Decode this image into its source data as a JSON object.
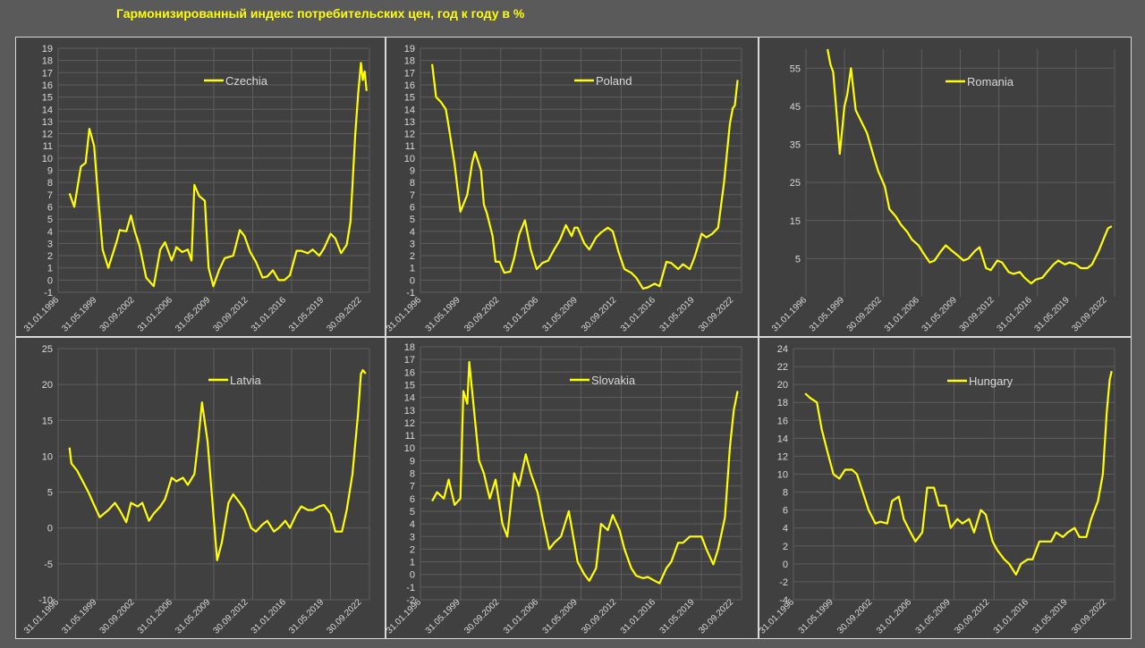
{
  "page": {
    "title": "Гармонизированный индекс потребительских цен, год к году в %"
  },
  "colors": {
    "line": "#ffff00",
    "panel_bg": "#404040",
    "page_bg": "#5a5a5a",
    "grid": "#5e5e5e",
    "text": "#d9d9d9"
  },
  "chart_data": [
    {
      "type": "line",
      "series": [
        {
          "name": "Czechia",
          "x": [
            "1997-01",
            "1997-06",
            "1998-01",
            "1998-06",
            "1998-10",
            "1999-03",
            "1999-06",
            "1999-12",
            "2000-06",
            "2001-03",
            "2001-06",
            "2002-01",
            "2002-06",
            "2002-10",
            "2003-03",
            "2003-10",
            "2004-06",
            "2005-01",
            "2005-06",
            "2006-01",
            "2006-06",
            "2006-12",
            "2007-06",
            "2007-10",
            "2008-01",
            "2008-06",
            "2008-12",
            "2009-04",
            "2009-09",
            "2010-03",
            "2010-09",
            "2011-06",
            "2012-01",
            "2012-06",
            "2012-12",
            "2013-06",
            "2014-01",
            "2014-06",
            "2014-12",
            "2015-06",
            "2015-12",
            "2016-06",
            "2017-01",
            "2017-06",
            "2018-01",
            "2018-06",
            "2019-01",
            "2019-06",
            "2020-01",
            "2020-06",
            "2020-12",
            "2021-06",
            "2021-10",
            "2022-03",
            "2022-06",
            "2022-09",
            "2022-11",
            "2023-01",
            "2023-03"
          ],
          "values": [
            7.1,
            6.0,
            9.3,
            9.6,
            12.4,
            11.0,
            8.0,
            2.5,
            1.0,
            3.2,
            4.1,
            4.0,
            5.3,
            4.0,
            2.8,
            0.2,
            -0.5,
            2.5,
            3.1,
            1.6,
            2.7,
            2.3,
            2.5,
            1.6,
            7.8,
            6.9,
            6.5,
            1.0,
            -0.5,
            0.8,
            1.8,
            2.0,
            4.1,
            3.6,
            2.3,
            1.5,
            0.2,
            0.3,
            0.8,
            0.0,
            0.0,
            0.4,
            2.4,
            2.4,
            2.2,
            2.5,
            2.0,
            2.6,
            3.8,
            3.4,
            2.2,
            2.9,
            4.8,
            11.9,
            15.2,
            17.8,
            16.4,
            17.1,
            15.5
          ]
        }
      ],
      "x_ticks": [
        "31.01.1996",
        "31.05.1999",
        "30.09.2002",
        "31.01.2006",
        "31.05.2009",
        "30.09.2012",
        "31.01.2016",
        "31.05.2019",
        "30.09.2022"
      ],
      "y_ticks": [
        -1,
        0,
        1,
        2,
        3,
        4,
        5,
        6,
        7,
        8,
        9,
        10,
        11,
        12,
        13,
        14,
        15,
        16,
        17,
        18,
        19
      ],
      "ylim": [
        -1,
        19
      ],
      "x_range": [
        "1996-01",
        "2023-06"
      ],
      "grid": true,
      "legend": "top-right"
    },
    {
      "type": "line",
      "series": [
        {
          "name": "Poland",
          "x": [
            "1997-01",
            "1997-05",
            "1997-10",
            "1998-03",
            "1998-06",
            "1998-12",
            "1999-03",
            "1999-06",
            "2000-01",
            "2000-06",
            "2000-09",
            "2001-03",
            "2001-06",
            "2001-09",
            "2002-03",
            "2002-06",
            "2002-10",
            "2003-03",
            "2003-09",
            "2004-01",
            "2004-06",
            "2004-12",
            "2005-06",
            "2005-12",
            "2006-06",
            "2006-12",
            "2007-06",
            "2007-12",
            "2008-06",
            "2008-12",
            "2009-03",
            "2009-06",
            "2010-01",
            "2010-06",
            "2011-01",
            "2011-06",
            "2012-01",
            "2012-06",
            "2012-12",
            "2013-06",
            "2014-01",
            "2014-06",
            "2015-01",
            "2015-06",
            "2016-01",
            "2016-06",
            "2017-01",
            "2017-06",
            "2018-01",
            "2018-06",
            "2019-01",
            "2019-06",
            "2020-01",
            "2020-06",
            "2020-12",
            "2021-06",
            "2021-12",
            "2022-06",
            "2022-09",
            "2022-11",
            "2023-02"
          ],
          "values": [
            17.7,
            15.0,
            14.6,
            14.0,
            12.6,
            9.5,
            7.5,
            5.6,
            7.0,
            9.6,
            10.5,
            9.0,
            6.2,
            5.5,
            3.6,
            1.5,
            1.5,
            0.6,
            0.7,
            1.8,
            3.7,
            4.9,
            2.5,
            0.9,
            1.4,
            1.6,
            2.5,
            3.3,
            4.5,
            3.6,
            4.3,
            4.3,
            3.0,
            2.5,
            3.5,
            3.9,
            4.3,
            4.0,
            2.3,
            0.9,
            0.6,
            0.2,
            -0.7,
            -0.6,
            -0.3,
            -0.5,
            1.5,
            1.4,
            0.9,
            1.3,
            0.9,
            1.9,
            3.8,
            3.5,
            3.8,
            4.3,
            8.0,
            12.8,
            14.1,
            14.3,
            16.4
          ]
        }
      ],
      "x_ticks": [
        "31.01.1996",
        "31.05.1999",
        "30.09.2002",
        "31.01.2006",
        "31.05.2009",
        "30.09.2012",
        "31.01.2016",
        "31.05.2019",
        "30.09.2022"
      ],
      "y_ticks": [
        -1,
        0,
        1,
        2,
        3,
        4,
        5,
        6,
        7,
        8,
        9,
        10,
        11,
        12,
        13,
        14,
        15,
        16,
        17,
        18,
        19
      ],
      "ylim": [
        -1,
        19
      ],
      "x_range": [
        "1996-01",
        "2023-06"
      ],
      "grid": true,
      "legend": "top-right"
    },
    {
      "type": "line",
      "series": [
        {
          "name": "Romania",
          "x": [
            "1997-12",
            "1998-03",
            "1998-06",
            "1998-09",
            "1999-01",
            "1999-06",
            "1999-09",
            "2000-01",
            "2000-06",
            "2000-12",
            "2001-06",
            "2002-01",
            "2002-06",
            "2003-01",
            "2003-06",
            "2004-01",
            "2004-06",
            "2005-01",
            "2005-06",
            "2006-01",
            "2006-06",
            "2007-01",
            "2007-06",
            "2008-01",
            "2008-06",
            "2009-01",
            "2009-06",
            "2010-01",
            "2010-06",
            "2011-01",
            "2011-06",
            "2012-01",
            "2012-06",
            "2013-01",
            "2013-06",
            "2014-01",
            "2014-06",
            "2015-01",
            "2015-06",
            "2016-01",
            "2016-06",
            "2017-01",
            "2017-06",
            "2018-01",
            "2018-06",
            "2019-01",
            "2019-06",
            "2020-01",
            "2020-06",
            "2021-01",
            "2021-06",
            "2022-01",
            "2022-06",
            "2022-11",
            "2023-03"
          ],
          "values": [
            60.0,
            56.0,
            54.0,
            45.0,
            32.5,
            45.0,
            48.0,
            55.0,
            44.0,
            41.0,
            38.0,
            32.0,
            28.0,
            24.0,
            18.0,
            16.0,
            14.0,
            12.0,
            10.0,
            8.5,
            6.5,
            4.0,
            4.5,
            7.0,
            8.5,
            7.0,
            6.0,
            4.5,
            5.0,
            7.0,
            8.0,
            2.5,
            2.0,
            4.5,
            4.0,
            1.5,
            1.0,
            1.5,
            0.0,
            -1.5,
            -0.5,
            0.0,
            1.5,
            3.5,
            4.5,
            3.5,
            4.0,
            3.5,
            2.5,
            2.5,
            3.5,
            7.0,
            10.0,
            13.0,
            13.5
          ]
        }
      ],
      "x_ticks": [
        "31.01.1996",
        "31.05.1999",
        "30.09.2002",
        "31.01.2006",
        "31.05.2009",
        "30.09.2012",
        "31.01.2016",
        "31.05.2019",
        "30.09.2022"
      ],
      "y_ticks": [
        5,
        15,
        25,
        35,
        45,
        55
      ],
      "ylim": [
        -5,
        60
      ],
      "x_range": [
        "1996-01",
        "2023-06"
      ],
      "grid": true,
      "legend": "top-right"
    },
    {
      "type": "line",
      "series": [
        {
          "name": "Latvia",
          "x": [
            "1997-01",
            "1997-03",
            "1997-09",
            "1998-03",
            "1998-09",
            "1999-03",
            "1999-09",
            "2000-06",
            "2001-01",
            "2001-06",
            "2002-01",
            "2002-06",
            "2003-01",
            "2003-06",
            "2004-01",
            "2004-06",
            "2005-01",
            "2005-06",
            "2006-01",
            "2006-06",
            "2007-01",
            "2007-06",
            "2008-01",
            "2008-05",
            "2008-09",
            "2009-03",
            "2009-09",
            "2010-01",
            "2010-06",
            "2011-01",
            "2011-06",
            "2012-01",
            "2012-06",
            "2013-01",
            "2013-06",
            "2014-01",
            "2014-06",
            "2015-01",
            "2015-06",
            "2016-01",
            "2016-06",
            "2017-01",
            "2017-06",
            "2018-01",
            "2018-06",
            "2019-01",
            "2019-06",
            "2020-01",
            "2020-06",
            "2021-01",
            "2021-06",
            "2021-12",
            "2022-06",
            "2022-09",
            "2022-11",
            "2023-02"
          ],
          "values": [
            11.2,
            9.0,
            8.0,
            6.5,
            5.0,
            3.2,
            1.5,
            2.5,
            3.5,
            2.5,
            0.8,
            3.5,
            3.0,
            3.5,
            1.0,
            2.0,
            3.0,
            4.0,
            7.0,
            6.5,
            7.0,
            6.0,
            7.5,
            12.0,
            17.5,
            12.0,
            2.0,
            -4.5,
            -2.0,
            3.5,
            4.7,
            3.5,
            2.5,
            0.0,
            -0.5,
            0.5,
            1.0,
            -0.5,
            0.0,
            1.0,
            0.0,
            2.0,
            3.0,
            2.5,
            2.5,
            3.0,
            3.2,
            2.0,
            -0.5,
            -0.5,
            2.5,
            7.5,
            16.0,
            21.5,
            22.0,
            21.5
          ]
        }
      ],
      "x_ticks": [
        "31.01.1996",
        "31.05.1999",
        "30.09.2002",
        "31.01.2006",
        "31.05.2009",
        "30.09.2012",
        "31.01.2016",
        "31.05.2019",
        "30.09.2022"
      ],
      "y_ticks": [
        -10,
        -5,
        0,
        5,
        10,
        15,
        20,
        25
      ],
      "ylim": [
        -10,
        25
      ],
      "x_range": [
        "1996-01",
        "2023-06"
      ],
      "grid": true,
      "legend": "top-right"
    },
    {
      "type": "line",
      "series": [
        {
          "name": "Slovakia",
          "x": [
            "1997-01",
            "1997-06",
            "1998-01",
            "1998-06",
            "1998-12",
            "1999-06",
            "1999-09",
            "2000-01",
            "2000-03",
            "2000-06",
            "2001-01",
            "2001-06",
            "2001-12",
            "2002-06",
            "2003-01",
            "2003-06",
            "2004-01",
            "2004-06",
            "2005-01",
            "2005-06",
            "2006-01",
            "2006-06",
            "2007-01",
            "2007-06",
            "2008-01",
            "2008-09",
            "2009-06",
            "2010-01",
            "2010-06",
            "2011-01",
            "2011-06",
            "2012-01",
            "2012-06",
            "2013-01",
            "2013-06",
            "2014-01",
            "2014-06",
            "2015-01",
            "2015-06",
            "2016-01",
            "2016-06",
            "2017-01",
            "2017-06",
            "2018-01",
            "2018-06",
            "2019-01",
            "2019-06",
            "2020-01",
            "2020-06",
            "2021-01",
            "2021-06",
            "2022-01",
            "2022-06",
            "2022-10",
            "2023-02"
          ],
          "values": [
            5.8,
            6.5,
            6.0,
            7.5,
            5.5,
            6.0,
            14.5,
            13.5,
            16.8,
            14.5,
            9.0,
            8.0,
            6.0,
            7.5,
            4.0,
            3.0,
            8.0,
            7.0,
            9.5,
            8.0,
            6.5,
            4.5,
            2.0,
            2.5,
            3.0,
            5.0,
            1.0,
            0.0,
            -0.5,
            0.5,
            4.0,
            3.5,
            4.7,
            3.5,
            2.0,
            0.5,
            -0.1,
            -0.3,
            -0.2,
            -0.5,
            -0.7,
            0.5,
            1.0,
            2.5,
            2.5,
            3.0,
            3.0,
            3.0,
            2.0,
            0.8,
            2.0,
            4.5,
            10.0,
            13.0,
            14.5
          ]
        }
      ],
      "x_ticks": [
        "31.01.1996",
        "31.05.1999",
        "30.09.2002",
        "31.01.2006",
        "31.05.2009",
        "30.09.2012",
        "31.01.2016",
        "31.05.2019",
        "30.09.2022"
      ],
      "y_ticks": [
        -2,
        -1,
        0,
        1,
        2,
        3,
        4,
        5,
        6,
        7,
        8,
        9,
        10,
        11,
        12,
        13,
        14,
        15,
        16,
        17,
        18
      ],
      "ylim": [
        -2,
        18
      ],
      "x_range": [
        "1996-01",
        "2023-06"
      ],
      "grid": true,
      "legend": "top-right"
    },
    {
      "type": "line",
      "series": [
        {
          "name": "Hungary",
          "x": [
            "1997-01",
            "1997-06",
            "1998-01",
            "1998-06",
            "1999-01",
            "1999-06",
            "1999-12",
            "2000-06",
            "2001-01",
            "2001-06",
            "2001-12",
            "2002-06",
            "2003-01",
            "2003-06",
            "2004-01",
            "2004-06",
            "2005-01",
            "2005-06",
            "2006-01",
            "2006-06",
            "2007-01",
            "2007-06",
            "2008-01",
            "2008-06",
            "2009-01",
            "2009-06",
            "2010-01",
            "2010-06",
            "2011-01",
            "2011-06",
            "2012-01",
            "2012-06",
            "2013-01",
            "2013-06",
            "2014-01",
            "2014-06",
            "2015-01",
            "2015-06",
            "2016-01",
            "2016-06",
            "2017-01",
            "2017-06",
            "2018-01",
            "2018-06",
            "2019-01",
            "2019-06",
            "2020-01",
            "2020-06",
            "2021-01",
            "2021-06",
            "2022-01",
            "2022-06",
            "2022-10",
            "2023-01",
            "2023-03"
          ],
          "values": [
            19.0,
            18.5,
            18.0,
            15.0,
            12.0,
            10.0,
            9.5,
            10.5,
            10.5,
            10.0,
            8.0,
            6.0,
            4.5,
            4.7,
            4.5,
            7.0,
            7.5,
            5.0,
            3.5,
            2.5,
            3.5,
            8.5,
            8.5,
            6.5,
            6.5,
            4.0,
            5.0,
            4.5,
            5.0,
            3.5,
            6.0,
            5.5,
            2.5,
            1.5,
            0.5,
            0.0,
            -1.2,
            0.0,
            0.5,
            0.5,
            2.5,
            2.5,
            2.5,
            3.5,
            3.0,
            3.5,
            4.0,
            3.0,
            3.0,
            5.0,
            7.0,
            10.0,
            17.0,
            20.5,
            21.5
          ]
        }
      ],
      "x_ticks": [
        "31.01.1996",
        "31.05.1999",
        "30.09.2002",
        "31.01.2006",
        "31.05.2009",
        "30.09.2012",
        "31.01.2016",
        "31.05.2019",
        "30.09.2022"
      ],
      "y_ticks": [
        -4,
        -2,
        0,
        2,
        4,
        6,
        8,
        10,
        12,
        14,
        16,
        18,
        20,
        22,
        24
      ],
      "ylim": [
        -4,
        24
      ],
      "x_range": [
        "1996-01",
        "2023-06"
      ],
      "grid": true,
      "legend": "top-right"
    }
  ]
}
